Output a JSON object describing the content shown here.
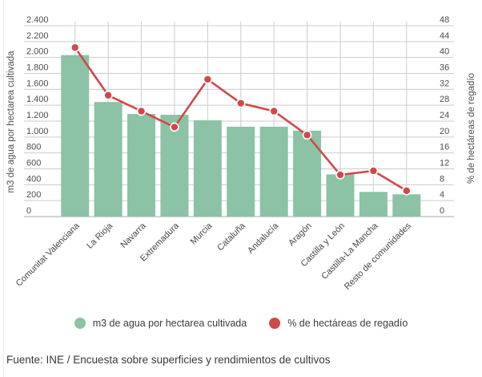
{
  "chart_data": {
    "type": "bar",
    "subtype": "bar-line-combo",
    "categories": [
      "Comunitat Valenciana",
      "La Rioja",
      "Navarra",
      "Extremadura",
      "Murcia",
      "Cataluña",
      "Andalucía",
      "Aragón",
      "Castilla y León",
      "Castilla-La Mancha",
      "Resto de comunidades"
    ],
    "series": [
      {
        "name": "m3 de agua por hectarea cultivada",
        "type": "bar",
        "axis": "left",
        "color": "#8cc2a5",
        "values": [
          2030,
          1440,
          1290,
          1280,
          1210,
          1130,
          1130,
          1080,
          530,
          310,
          280
        ]
      },
      {
        "name": "% de hectáreas de regadío",
        "type": "line",
        "axis": "right",
        "color": "#d04949",
        "values": [
          42.5,
          30.5,
          26.5,
          22.5,
          34.5,
          28.5,
          26.5,
          20.5,
          10.5,
          11.5,
          6.5
        ]
      }
    ],
    "y_axis_left": {
      "label": "m3 de agua por hectarea cultivada",
      "min": 0,
      "max": 2400,
      "step": 200,
      "tick_labels_top_to_bottom": [
        "2.400",
        "2.200",
        "2.000",
        "1.800",
        "1.600",
        "1.400",
        "1.200",
        "1.000",
        "800",
        "600",
        "400",
        "200",
        "0"
      ]
    },
    "y_axis_right": {
      "label": "% de hectáreas de regadío",
      "min": 0,
      "max": 48,
      "step": 4,
      "tick_labels_top_to_bottom": [
        "48",
        "44",
        "40",
        "36",
        "32",
        "28",
        "24",
        "20",
        "16",
        "12",
        "8",
        "4",
        "0"
      ]
    },
    "grid": true,
    "legend_position": "bottom"
  },
  "legend": {
    "items": [
      {
        "label": "m3 de agua por hectarea cultivada",
        "color": "#8cc2a5"
      },
      {
        "label": "% de hectáreas de regadío",
        "color": "#d04949"
      }
    ]
  },
  "source": "Fuente: INE / Encuesta sobre superficies y rendimientos de cultivos",
  "colors": {
    "bar": "#8cc2a5",
    "line": "#d04949",
    "grid": "#cccccc",
    "baseline": "#a8a8a8",
    "tick_text": "#4d4d4d",
    "axis_title_text": "#4f4f4f",
    "category_text": "#454545",
    "background": "#ffffff"
  }
}
